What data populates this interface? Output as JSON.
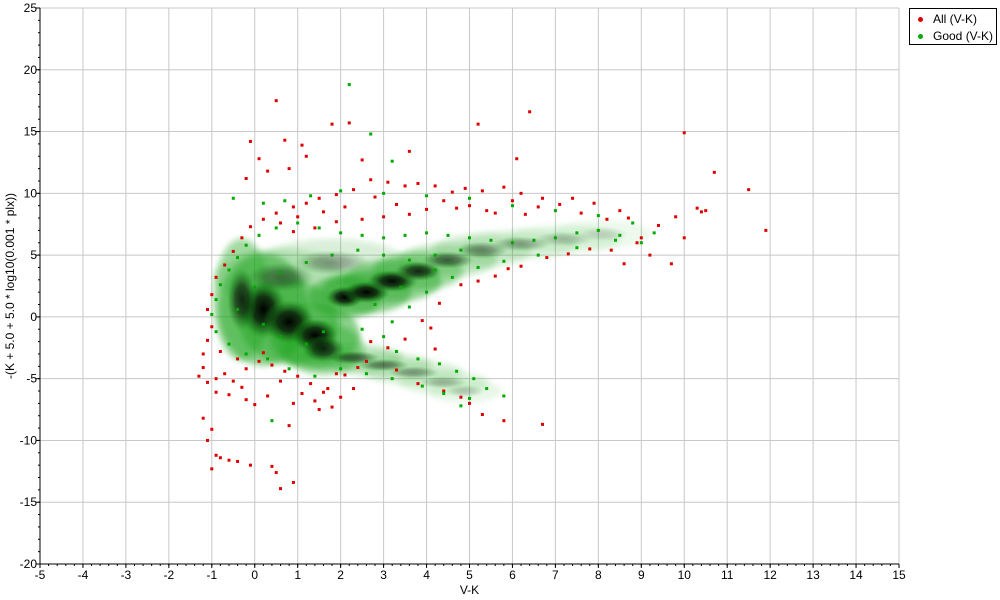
{
  "chart_data": {
    "type": "scatter",
    "xlabel": "V-K",
    "ylabel": "-(K + 5.0 + 5.0 * log10(0.001 * plx))",
    "xlim": [
      -5,
      15
    ],
    "ylim": [
      -20,
      25
    ],
    "x_ticks": [
      "-5",
      "-4",
      "-3",
      "-2",
      "-1",
      "0",
      "1",
      "2",
      "3",
      "4",
      "5",
      "6",
      "7",
      "8",
      "9",
      "10",
      "11",
      "12",
      "13",
      "14",
      "15"
    ],
    "y_ticks": [
      "25",
      "20",
      "15",
      "10",
      "5",
      "0",
      "-5",
      "-10",
      "-15",
      "-20"
    ],
    "grid": true,
    "legend_position": "top-right",
    "series": [
      {
        "name": "All (V-K)",
        "color": "#dd0000",
        "points": [
          [
            0.5,
            17.5
          ],
          [
            1.8,
            15.6
          ],
          [
            2.2,
            15.7
          ],
          [
            6.4,
            16.6
          ],
          [
            5.2,
            15.6
          ],
          [
            10.0,
            14.9
          ],
          [
            10.7,
            11.7
          ],
          [
            11.5,
            10.3
          ],
          [
            11.9,
            7.0
          ],
          [
            10.3,
            8.8
          ],
          [
            10.4,
            8.5
          ],
          [
            10.5,
            8.6
          ],
          [
            9.8,
            8.1
          ],
          [
            10.0,
            6.4
          ],
          [
            9.2,
            5.0
          ],
          [
            9.7,
            4.3
          ],
          [
            8.6,
            4.3
          ],
          [
            -0.1,
            14.2
          ],
          [
            0.7,
            14.3
          ],
          [
            1.1,
            13.9
          ],
          [
            1.2,
            13.0
          ],
          [
            0.1,
            12.8
          ],
          [
            -0.2,
            11.2
          ],
          [
            3.6,
            13.4
          ],
          [
            6.1,
            12.8
          ],
          [
            2.5,
            12.7
          ],
          [
            0.3,
            11.8
          ],
          [
            0.8,
            12.0
          ],
          [
            -1.0,
            -12.3
          ],
          [
            -0.8,
            -11.4
          ],
          [
            -0.9,
            -11.2
          ],
          [
            -0.6,
            -11.6
          ],
          [
            -0.4,
            -11.7
          ],
          [
            -0.1,
            -12.0
          ],
          [
            0.4,
            -12.1
          ],
          [
            0.5,
            -12.6
          ],
          [
            0.6,
            -13.9
          ],
          [
            0.9,
            -13.4
          ],
          [
            -1.1,
            -10.0
          ],
          [
            -1.0,
            -9.1
          ],
          [
            -1.2,
            -8.2
          ],
          [
            0.8,
            -8.8
          ],
          [
            6.7,
            -8.7
          ],
          [
            5.8,
            -8.4
          ],
          [
            5.3,
            -7.9
          ],
          [
            5.0,
            -7.0
          ],
          [
            4.8,
            -6.5
          ],
          [
            4.4,
            -6.0
          ],
          [
            3.8,
            -5.4
          ],
          [
            3.3,
            -4.3
          ],
          [
            2.7,
            -2.0
          ],
          [
            2.6,
            -3.6
          ],
          [
            3.1,
            -2.5
          ],
          [
            3.5,
            -1.8
          ],
          [
            4.2,
            -2.6
          ],
          [
            4.1,
            -0.9
          ],
          [
            3.9,
            -0.3
          ],
          [
            4.3,
            1.1
          ],
          [
            4.8,
            2.6
          ],
          [
            5.2,
            2.9
          ],
          [
            5.6,
            3.3
          ],
          [
            6.2,
            4.1
          ],
          [
            5.9,
            3.9
          ],
          [
            6.8,
            4.8
          ],
          [
            7.3,
            5.1
          ],
          [
            7.8,
            5.5
          ],
          [
            8.3,
            5.4
          ],
          [
            8.9,
            6.0
          ],
          [
            9.0,
            6.4
          ],
          [
            9.4,
            7.4
          ],
          [
            8.7,
            8.0
          ],
          [
            8.2,
            7.9
          ],
          [
            7.6,
            8.4
          ],
          [
            7.1,
            9.1
          ],
          [
            6.7,
            9.6
          ],
          [
            6.2,
            10.0
          ],
          [
            5.8,
            10.5
          ],
          [
            5.3,
            10.2
          ],
          [
            4.9,
            10.4
          ],
          [
            4.6,
            10.1
          ],
          [
            4.2,
            10.6
          ],
          [
            3.8,
            10.8
          ],
          [
            3.5,
            10.6
          ],
          [
            3.1,
            10.9
          ],
          [
            2.7,
            11.1
          ],
          [
            2.3,
            10.3
          ],
          [
            1.9,
            9.9
          ],
          [
            1.5,
            9.6
          ],
          [
            1.2,
            9.2
          ],
          [
            0.9,
            8.9
          ],
          [
            0.5,
            8.4
          ],
          [
            0.2,
            7.9
          ],
          [
            -0.1,
            7.3
          ],
          [
            -0.3,
            6.4
          ],
          [
            -0.5,
            5.3
          ],
          [
            -0.7,
            4.2
          ],
          [
            -0.9,
            3.2
          ],
          [
            -1.0,
            1.8
          ],
          [
            -1.1,
            0.6
          ],
          [
            -1.0,
            -0.8
          ],
          [
            -1.1,
            -1.9
          ],
          [
            -1.2,
            -3.0
          ],
          [
            -1.2,
            -4.1
          ],
          [
            -1.3,
            -4.8
          ],
          [
            -1.1,
            -5.3
          ],
          [
            -0.9,
            -5.0
          ],
          [
            -0.7,
            -4.6
          ],
          [
            -0.5,
            -5.2
          ],
          [
            -0.3,
            -5.7
          ],
          [
            -0.6,
            -6.3
          ],
          [
            -0.9,
            -6.1
          ],
          [
            -0.2,
            -4.2
          ],
          [
            0.1,
            -3.6
          ],
          [
            0.4,
            -3.9
          ],
          [
            0.7,
            -4.4
          ],
          [
            1.0,
            -4.8
          ],
          [
            1.3,
            -5.4
          ],
          [
            1.6,
            -6.1
          ],
          [
            1.4,
            -6.8
          ],
          [
            1.8,
            -7.3
          ],
          [
            2.0,
            -6.5
          ],
          [
            2.3,
            -5.8
          ],
          [
            0.6,
            -5.2
          ],
          [
            0.3,
            -6.4
          ],
          [
            0.0,
            -7.1
          ],
          [
            -0.2,
            -6.7
          ],
          [
            1.1,
            -6.2
          ],
          [
            0.9,
            -7.0
          ],
          [
            1.5,
            -7.5
          ],
          [
            1.7,
            -5.8
          ],
          [
            2.1,
            -4.7
          ],
          [
            2.4,
            -4.1
          ],
          [
            1.9,
            -4.6
          ],
          [
            0.2,
            -2.9
          ],
          [
            -0.4,
            -3.4
          ],
          [
            -0.8,
            -2.8
          ],
          [
            5.6,
            8.4
          ],
          [
            6.6,
            8.9
          ],
          [
            7.4,
            9.6
          ],
          [
            7.9,
            9.2
          ],
          [
            8.5,
            8.6
          ],
          [
            6.0,
            9.4
          ],
          [
            5.0,
            9.0
          ],
          [
            4.4,
            9.4
          ],
          [
            3.3,
            9.1
          ],
          [
            2.8,
            9.7
          ],
          [
            2.1,
            8.9
          ],
          [
            1.6,
            8.5
          ],
          [
            1.0,
            8.1
          ],
          [
            0.6,
            7.6
          ],
          [
            0.9,
            6.9
          ],
          [
            1.4,
            7.2
          ],
          [
            1.9,
            7.7
          ],
          [
            2.5,
            7.9
          ],
          [
            3.0,
            8.1
          ],
          [
            3.6,
            8.3
          ],
          [
            4.0,
            8.7
          ],
          [
            4.7,
            8.8
          ],
          [
            5.4,
            8.6
          ],
          [
            6.3,
            8.3
          ]
        ]
      },
      {
        "name": "Good (V-K)",
        "color": "#00aa00",
        "points": [
          [
            2.2,
            18.8
          ],
          [
            2.7,
            14.8
          ],
          [
            3.2,
            12.6
          ],
          [
            -0.5,
            9.6
          ],
          [
            0.2,
            9.2
          ],
          [
            0.7,
            9.4
          ],
          [
            1.3,
            9.8
          ],
          [
            2.0,
            10.2
          ],
          [
            3.0,
            10.0
          ],
          [
            4.0,
            9.8
          ],
          [
            5.0,
            9.6
          ],
          [
            6.0,
            9.0
          ],
          [
            7.0,
            8.6
          ],
          [
            8.0,
            8.2
          ],
          [
            8.8,
            7.6
          ],
          [
            9.3,
            6.8
          ],
          [
            8.4,
            6.2
          ],
          [
            7.5,
            5.6
          ],
          [
            6.6,
            5.0
          ],
          [
            5.8,
            4.5
          ],
          [
            5.2,
            4.0
          ],
          [
            4.6,
            3.2
          ],
          [
            4.0,
            2.0
          ],
          [
            3.6,
            0.8
          ],
          [
            3.2,
            -0.4
          ],
          [
            3.0,
            -1.6
          ],
          [
            3.3,
            -2.8
          ],
          [
            3.8,
            -3.4
          ],
          [
            4.3,
            -3.8
          ],
          [
            4.7,
            -4.4
          ],
          [
            5.1,
            -5.0
          ],
          [
            5.4,
            -5.8
          ],
          [
            5.0,
            -6.6
          ],
          [
            4.4,
            -6.2
          ],
          [
            3.9,
            -5.6
          ],
          [
            3.2,
            -5.0
          ],
          [
            2.6,
            -4.6
          ],
          [
            2.0,
            -4.2
          ],
          [
            1.4,
            -4.8
          ],
          [
            0.8,
            -4.2
          ],
          [
            0.3,
            -3.4
          ],
          [
            -0.2,
            -3.0
          ],
          [
            -0.6,
            -2.2
          ],
          [
            -0.9,
            -1.2
          ],
          [
            -1.0,
            0.2
          ],
          [
            -0.9,
            1.4
          ],
          [
            -0.8,
            2.6
          ],
          [
            -0.6,
            3.8
          ],
          [
            -0.4,
            4.8
          ],
          [
            -0.2,
            5.8
          ],
          [
            0.1,
            6.6
          ],
          [
            0.5,
            7.2
          ],
          [
            1.0,
            7.6
          ],
          [
            1.5,
            7.2
          ],
          [
            2.0,
            6.8
          ],
          [
            2.5,
            6.6
          ],
          [
            3.0,
            6.4
          ],
          [
            3.5,
            6.6
          ],
          [
            4.0,
            6.8
          ],
          [
            4.5,
            6.6
          ],
          [
            5.0,
            6.4
          ],
          [
            5.5,
            6.2
          ],
          [
            6.0,
            6.0
          ],
          [
            6.5,
            6.2
          ],
          [
            7.0,
            6.4
          ],
          [
            7.5,
            6.8
          ],
          [
            8.0,
            7.0
          ],
          [
            8.5,
            6.6
          ],
          [
            9.0,
            6.0
          ],
          [
            0.4,
            -8.4
          ],
          [
            5.8,
            -6.4
          ],
          [
            4.8,
            -7.2
          ],
          [
            2.5,
            -1.0
          ],
          [
            2.8,
            1.0
          ],
          [
            3.4,
            2.4
          ],
          [
            4.2,
            3.8
          ],
          [
            1.6,
            -1.2
          ],
          [
            1.2,
            -2.2
          ],
          [
            0.6,
            -1.6
          ],
          [
            0.2,
            -0.6
          ],
          [
            -0.4,
            0.6
          ],
          [
            0.0,
            2.4
          ],
          [
            0.6,
            3.6
          ],
          [
            1.2,
            4.4
          ],
          [
            1.8,
            5.0
          ],
          [
            2.4,
            5.4
          ],
          [
            3.0,
            5.0
          ],
          [
            3.6,
            4.6
          ],
          [
            4.2,
            5.0
          ],
          [
            4.8,
            5.4
          ]
        ]
      }
    ],
    "density": [
      {
        "x": 0.2,
        "y": 0.6,
        "rx": 0.55,
        "ry": 2.4,
        "w": 1.0
      },
      {
        "x": -0.3,
        "y": 1.4,
        "rx": 0.35,
        "ry": 2.6,
        "w": 0.8
      },
      {
        "x": 0.8,
        "y": -0.4,
        "rx": 0.6,
        "ry": 1.8,
        "w": 1.0
      },
      {
        "x": 1.4,
        "y": -1.5,
        "rx": 0.55,
        "ry": 1.4,
        "w": 1.0
      },
      {
        "x": 1.6,
        "y": -2.6,
        "rx": 0.5,
        "ry": 1.1,
        "w": 0.8
      },
      {
        "x": 2.1,
        "y": 1.6,
        "rx": 0.45,
        "ry": 0.9,
        "w": 1.0
      },
      {
        "x": 2.6,
        "y": 2.0,
        "rx": 0.55,
        "ry": 0.9,
        "w": 1.0
      },
      {
        "x": 3.2,
        "y": 2.9,
        "rx": 0.6,
        "ry": 0.9,
        "w": 0.95
      },
      {
        "x": 3.8,
        "y": 3.7,
        "rx": 0.55,
        "ry": 0.8,
        "w": 0.8
      },
      {
        "x": 4.5,
        "y": 4.6,
        "rx": 0.6,
        "ry": 0.7,
        "w": 0.55
      },
      {
        "x": 5.3,
        "y": 5.4,
        "rx": 0.6,
        "ry": 0.7,
        "w": 0.4
      },
      {
        "x": 6.2,
        "y": 5.9,
        "rx": 0.7,
        "ry": 0.6,
        "w": 0.3
      },
      {
        "x": 7.2,
        "y": 6.3,
        "rx": 0.7,
        "ry": 0.6,
        "w": 0.2
      },
      {
        "x": 8.1,
        "y": 6.7,
        "rx": 0.6,
        "ry": 0.6,
        "w": 0.14
      },
      {
        "x": 2.3,
        "y": -3.3,
        "rx": 0.6,
        "ry": 0.55,
        "w": 0.55
      },
      {
        "x": 3.0,
        "y": -3.9,
        "rx": 0.6,
        "ry": 0.5,
        "w": 0.45
      },
      {
        "x": 3.7,
        "y": -4.5,
        "rx": 0.6,
        "ry": 0.5,
        "w": 0.35
      },
      {
        "x": 4.4,
        "y": -5.3,
        "rx": 0.55,
        "ry": 0.5,
        "w": 0.25
      },
      {
        "x": 4.9,
        "y": -6.0,
        "rx": 0.45,
        "ry": 0.5,
        "w": 0.18
      },
      {
        "x": 1.8,
        "y": 4.4,
        "rx": 0.9,
        "ry": 1.0,
        "w": 0.35
      },
      {
        "x": 0.6,
        "y": 3.2,
        "rx": 0.8,
        "ry": 1.2,
        "w": 0.45
      }
    ]
  },
  "legend": {
    "items": [
      {
        "label": "All (V-K)",
        "color": "#dd0000"
      },
      {
        "label": "Good (V-K)",
        "color": "#00aa00"
      }
    ]
  }
}
